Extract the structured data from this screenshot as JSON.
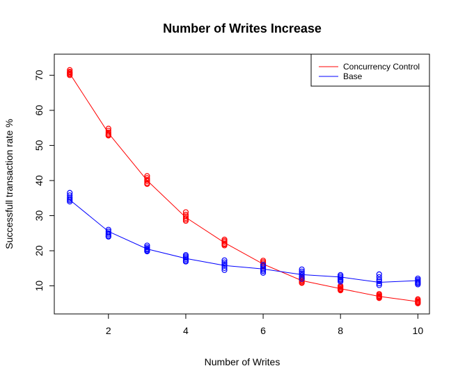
{
  "chart_data": {
    "type": "scatter",
    "title": "Number of Writes Increase",
    "xlabel": "Number of Writes",
    "ylabel": "Successfull transaction rate %",
    "xlim": [
      0.6,
      10.3
    ],
    "ylim": [
      2,
      76
    ],
    "xticks": [
      2,
      4,
      6,
      8,
      10
    ],
    "yticks": [
      10,
      20,
      30,
      40,
      50,
      60,
      70
    ],
    "legend_position": "top-right",
    "x": [
      1,
      2,
      3,
      4,
      5,
      6,
      7,
      8,
      9,
      10
    ],
    "series": [
      {
        "name": "Concurrency Control",
        "color": "#ff0000",
        "line": [
          70.5,
          53.5,
          40.0,
          29.5,
          22.3,
          16.2,
          11.5,
          9.2,
          7.0,
          5.5
        ],
        "points": [
          [
            71.5,
            71.0,
            70.8,
            70.5,
            70.3,
            70.0
          ],
          [
            54.8,
            54.2,
            53.7,
            53.3,
            53.0,
            52.8
          ],
          [
            41.3,
            40.7,
            40.2,
            39.8,
            39.3,
            39.0
          ],
          [
            31.0,
            30.3,
            29.8,
            29.3,
            28.9,
            28.5
          ],
          [
            23.2,
            22.8,
            22.4,
            22.0,
            21.8,
            21.5
          ],
          [
            17.2,
            16.8,
            16.4,
            16.0,
            15.7,
            15.4
          ],
          [
            12.3,
            11.9,
            11.6,
            11.3,
            11.0,
            10.8
          ],
          [
            10.0,
            9.7,
            9.4,
            9.1,
            8.9,
            8.7
          ],
          [
            7.7,
            7.4,
            7.1,
            6.9,
            6.7,
            6.5
          ],
          [
            6.2,
            5.9,
            5.6,
            5.4,
            5.2,
            5.0
          ]
        ]
      },
      {
        "name": "Base",
        "color": "#0000ff",
        "line": [
          34.5,
          25.5,
          20.5,
          17.8,
          15.8,
          14.8,
          13.2,
          12.5,
          11.0,
          11.5
        ],
        "points": [
          [
            36.5,
            35.8,
            35.2,
            34.8,
            34.4,
            34.0
          ],
          [
            26.0,
            25.5,
            25.0,
            24.6,
            24.2,
            24.0
          ],
          [
            21.5,
            21.0,
            20.6,
            20.3,
            20.0,
            19.8
          ],
          [
            18.8,
            18.4,
            18.0,
            17.6,
            17.2,
            16.9
          ],
          [
            17.3,
            16.7,
            16.2,
            15.7,
            15.1,
            14.5
          ],
          [
            16.0,
            15.5,
            15.0,
            14.6,
            14.2,
            13.7
          ],
          [
            14.7,
            14.1,
            13.6,
            13.1,
            12.6,
            12.0
          ],
          [
            13.1,
            12.7,
            12.3,
            11.9,
            11.6,
            11.2
          ],
          [
            13.3,
            12.5,
            11.8,
            11.3,
            10.7,
            10.2
          ],
          [
            12.1,
            11.7,
            11.3,
            11.0,
            10.7,
            10.4
          ]
        ]
      }
    ]
  }
}
